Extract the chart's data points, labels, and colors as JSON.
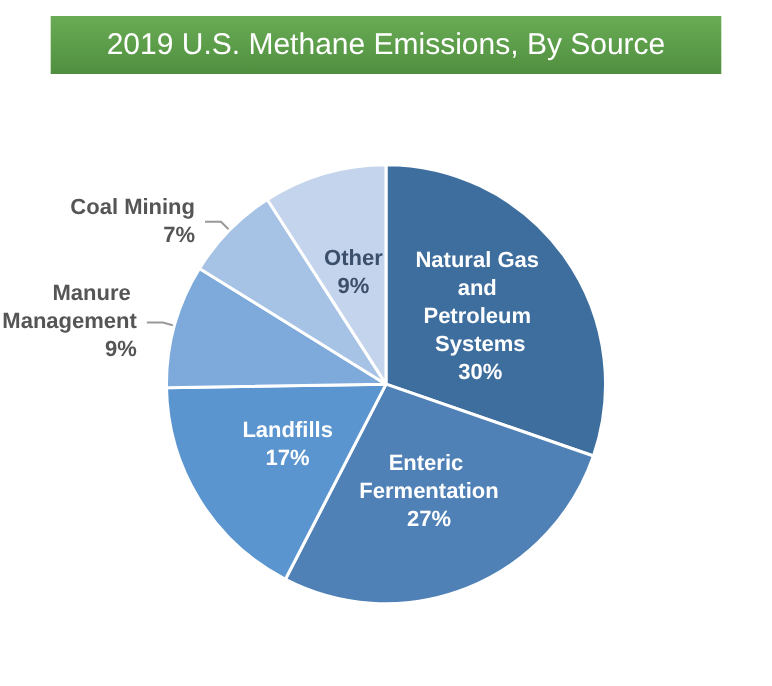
{
  "chart_data": {
    "type": "pie",
    "title": "2019 U.S. Methane Emissions, By Source",
    "categories": [
      "Natural Gas and Petroleum Systems",
      "Enteric Fermentation",
      "Landfills",
      "Manure Management",
      "Coal Mining",
      "Other"
    ],
    "values": [
      30,
      27,
      17,
      9,
      7,
      9
    ],
    "value_labels": [
      "30%",
      "27%",
      "17%",
      "9%",
      "7%",
      "9%"
    ],
    "colors": [
      "#3e6e9e",
      "#4f80b6",
      "#5b95cf",
      "#7eaadb",
      "#a6c2e5",
      "#c4d4ec"
    ],
    "legend": false
  }
}
